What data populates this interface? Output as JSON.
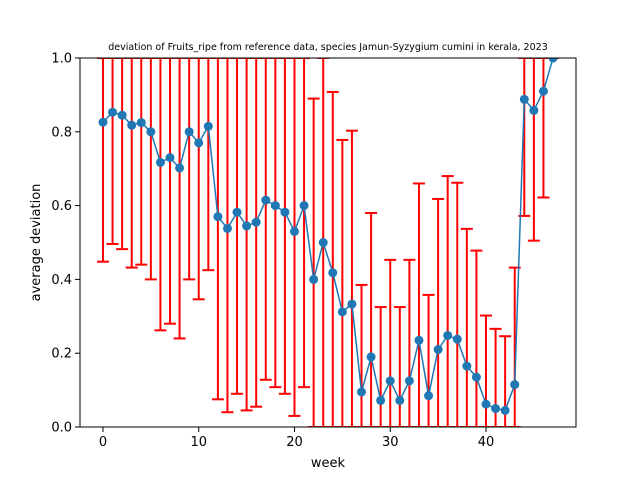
{
  "chart_data": {
    "type": "line",
    "title": "deviation of Fruits_ripe from reference data, species Jamun-Syzygium cumini in kerala, 2023",
    "xlabel": "week",
    "ylabel": "average deviation",
    "xlim": [
      -2.4,
      49.4
    ],
    "ylim": [
      0.0,
      1.0
    ],
    "x_ticks": [
      0,
      10,
      20,
      30,
      40
    ],
    "y_ticks": [
      0.0,
      0.2,
      0.4,
      0.6,
      0.8,
      1.0
    ],
    "x_tick_labels": [
      "0",
      "10",
      "20",
      "30",
      "40"
    ],
    "y_tick_labels": [
      "0.0",
      "0.2",
      "0.4",
      "0.6",
      "0.8",
      "1.0"
    ],
    "grid": false,
    "legend": "none",
    "colors": {
      "line": "#1f77b4",
      "errorbar": "#ff0000"
    },
    "series": [
      {
        "x": [
          0,
          1,
          2,
          3,
          4,
          5,
          6,
          7,
          8,
          9,
          10,
          11,
          12,
          13,
          14,
          15,
          16,
          17,
          18,
          19,
          20,
          21,
          22,
          23,
          24,
          25,
          26,
          27,
          28,
          29,
          30,
          31,
          32,
          33,
          34,
          35,
          36,
          37,
          38,
          39,
          40,
          41,
          42,
          43,
          44,
          45,
          46,
          47
        ],
        "y": [
          0.826,
          0.853,
          0.845,
          0.818,
          0.825,
          0.8,
          0.717,
          0.73,
          0.702,
          0.8,
          0.77,
          0.815,
          0.57,
          0.538,
          0.582,
          0.545,
          0.555,
          0.615,
          0.6,
          0.582,
          0.53,
          0.6,
          0.4,
          0.5,
          0.418,
          0.312,
          0.333,
          0.095,
          0.19,
          0.072,
          0.125,
          0.072,
          0.125,
          0.235,
          0.085,
          0.21,
          0.248,
          0.238,
          0.165,
          0.135,
          0.062,
          0.05,
          0.045,
          0.115,
          0.888,
          0.858,
          0.91,
          1.0
        ],
        "err_low": [
          0.448,
          0.496,
          0.482,
          0.432,
          0.44,
          0.4,
          0.262,
          0.28,
          0.24,
          0.4,
          0.346,
          0.425,
          0.075,
          0.04,
          0.09,
          0.045,
          0.055,
          0.128,
          0.108,
          0.09,
          0.03,
          0.108,
          0.0,
          0.0,
          0.0,
          0.0,
          0.0,
          0.0,
          0.0,
          0.0,
          0.0,
          0.0,
          0.0,
          0.0,
          0.0,
          0.0,
          0.0,
          0.0,
          0.0,
          0.0,
          0.0,
          0.0,
          0.0,
          0.0,
          0.572,
          0.505,
          0.622,
          1.0
        ],
        "err_high": [
          1.0,
          1.0,
          1.0,
          1.0,
          1.0,
          1.0,
          1.0,
          1.0,
          1.0,
          1.0,
          1.0,
          1.0,
          1.0,
          1.0,
          1.0,
          1.0,
          1.0,
          1.0,
          1.0,
          1.0,
          1.0,
          1.0,
          0.89,
          1.0,
          0.908,
          0.778,
          0.803,
          0.385,
          0.58,
          0.325,
          0.453,
          0.325,
          0.453,
          0.66,
          0.358,
          0.618,
          0.68,
          0.662,
          0.537,
          0.478,
          0.302,
          0.266,
          0.246,
          0.432,
          1.0,
          1.0,
          1.0,
          1.0
        ]
      }
    ]
  }
}
